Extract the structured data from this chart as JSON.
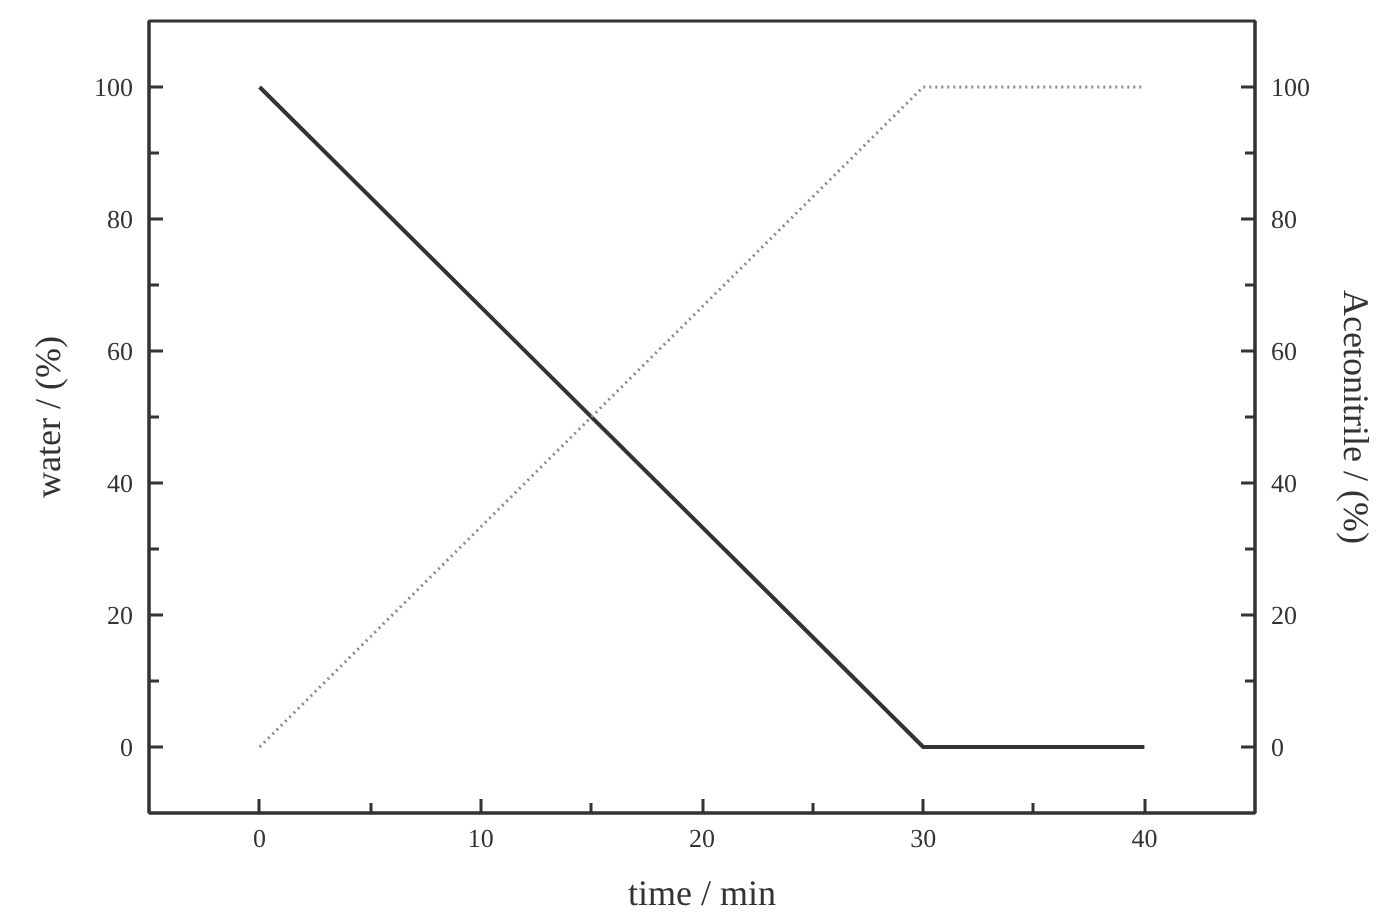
{
  "chart_data": {
    "type": "line",
    "xlabel": "time / min",
    "ylabel": "water / (%)",
    "y2label": "Acetonitrile / (%)",
    "x": [
      0,
      30,
      40
    ],
    "xlim": [
      -5,
      45
    ],
    "xticks": [
      0,
      {
        "value": 5,
        "label": null
      },
      10,
      {
        "value": 15,
        "label": null
      },
      20,
      {
        "value": 25,
        "label": null
      },
      30,
      {
        "value": 35,
        "label": null
      },
      40
    ],
    "ylim": [
      -10,
      110
    ],
    "yticks": [
      0,
      {
        "value": 10,
        "label": null
      },
      20,
      {
        "value": 30,
        "label": null
      },
      40,
      {
        "value": 50,
        "label": null
      },
      60,
      {
        "value": 70,
        "label": null
      },
      80,
      {
        "value": 90,
        "label": null
      },
      100
    ],
    "y2lim": [
      -10,
      110
    ],
    "y2ticks": [
      0,
      {
        "value": 10,
        "label": null
      },
      20,
      {
        "value": 30,
        "label": null
      },
      40,
      {
        "value": 50,
        "label": null
      },
      60,
      {
        "value": 70,
        "label": null
      },
      80,
      {
        "value": 90,
        "label": null
      },
      100
    ],
    "series": [
      {
        "color": "#333333",
        "values": [
          100,
          0,
          0
        ],
        "line_style": "solid"
      },
      {
        "color": "#8a8a8a",
        "values": [
          0,
          100,
          100
        ],
        "line_style": "dotted",
        "axis": "y2"
      }
    ]
  }
}
